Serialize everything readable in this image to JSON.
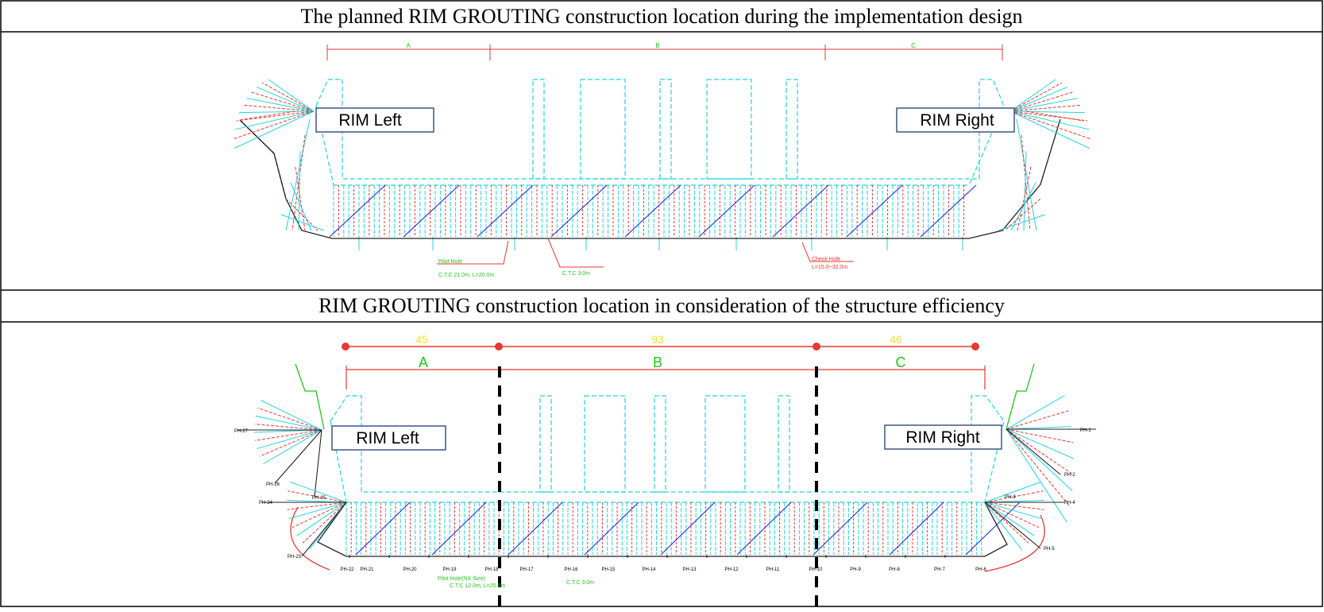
{
  "titles": {
    "top": "The planned RIM GROUTING construction location during the implementation design",
    "bottom": "RIM GROUTING construction location in consideration of the structure efficiency"
  },
  "top_panel": {
    "rim_left": "RIM Left",
    "rim_right": "RIM Right",
    "sections": [
      "A",
      "B",
      "C"
    ],
    "notes": {
      "pilot_title": "Pilot Hole",
      "pilot_spec": "C.T.C 21.0m, L=20.0m",
      "ctc": "C.T.C 3.0m",
      "check_title": "Check Hole",
      "check_spec": "L=15.0~32.0m"
    }
  },
  "bottom_panel": {
    "rim_left": "RIM Left",
    "rim_right": "RIM Right",
    "lengths": [
      "45",
      "93",
      "46"
    ],
    "sections": [
      "A",
      "B",
      "C"
    ],
    "holes_bottom": [
      "PH-22",
      "PH-21",
      "PH-20",
      "PH-19",
      "PH-18",
      "PH-17",
      "PH-16",
      "PH-15",
      "PH-14",
      "PH-13",
      "PH-12",
      "PH-11",
      "PH-10",
      "PH-9",
      "PH-8",
      "PH-7",
      "PH-6"
    ],
    "holes_left": [
      "PH-27",
      "PH-26",
      "PH-25",
      "PH-24",
      "PH-23"
    ],
    "holes_right": [
      "PH-1",
      "PH-2",
      "PH-3",
      "PH-4",
      "PH-5"
    ],
    "notes": {
      "pilot_title": "Pilot Hole(NX Size)",
      "pilot_spec": "C.T.C 12.0m, L=20.0m",
      "ctc": "C.T.C 3.0m"
    }
  },
  "colors": {
    "cyan": "#22d3e0",
    "red": "#e53935",
    "blue": "#1f2fd6",
    "green": "#22c41a",
    "yellow": "#f0e13a",
    "dark": "#222222"
  }
}
